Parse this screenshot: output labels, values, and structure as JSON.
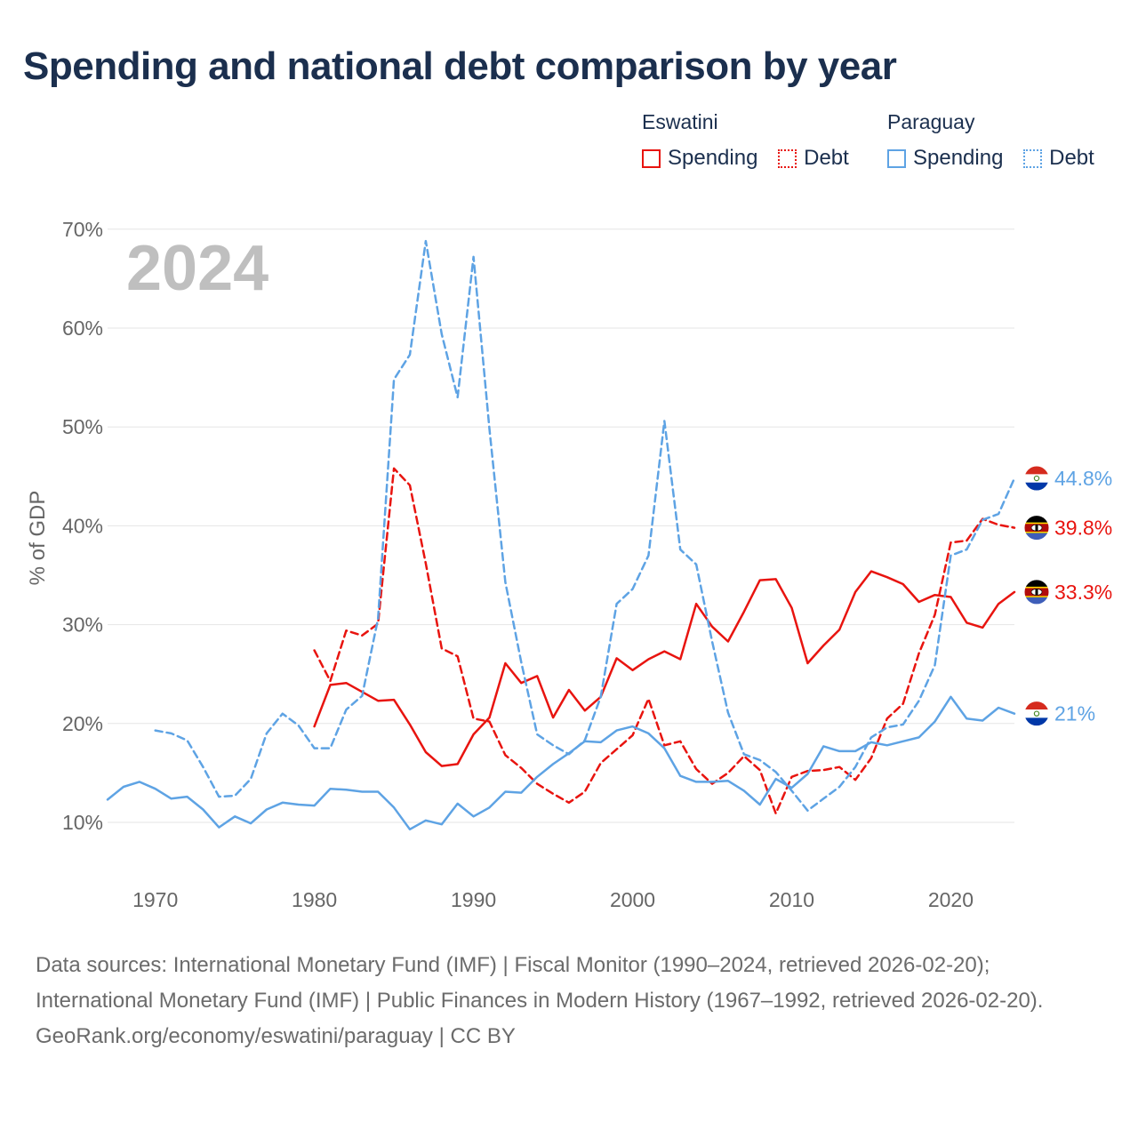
{
  "title": "Spending and national debt comparison by year",
  "year_badge": "2024",
  "legend": {
    "groups": [
      {
        "country": "Eswatini",
        "color": "#e8140f",
        "spending_label": "Spending",
        "debt_label": "Debt"
      },
      {
        "country": "Paraguay",
        "color": "#5ea3e4",
        "spending_label": "Spending",
        "debt_label": "Debt"
      }
    ]
  },
  "chart_data": {
    "type": "line",
    "title": "Spending and national debt comparison by year",
    "xlabel": "",
    "ylabel": "% of GDP",
    "xlim": [
      1967,
      2024
    ],
    "ylim": [
      5,
      72
    ],
    "x_ticks": [
      1970,
      1980,
      1990,
      2000,
      2010,
      2020
    ],
    "y_ticks": [
      10,
      20,
      30,
      40,
      50,
      60,
      70
    ],
    "y_tick_labels": [
      "10%",
      "20%",
      "30%",
      "40%",
      "50%",
      "60%",
      "70%"
    ],
    "grid": true,
    "series": [
      {
        "name": "Eswatini Spending",
        "country": "Eswatini",
        "measure": "Spending",
        "style": "solid",
        "color": "#e8140f",
        "x": [
          1980,
          1981,
          1982,
          1983,
          1984,
          1985,
          1986,
          1987,
          1988,
          1989,
          1990,
          1991,
          1992,
          1993,
          1994,
          1995,
          1996,
          1997,
          1998,
          1999,
          2000,
          2001,
          2002,
          2003,
          2004,
          2005,
          2006,
          2007,
          2008,
          2009,
          2010,
          2011,
          2012,
          2013,
          2014,
          2015,
          2016,
          2017,
          2018,
          2019,
          2020,
          2021,
          2022,
          2023,
          2024
        ],
        "values": [
          19.7,
          23.9,
          24.1,
          23.2,
          22.3,
          22.4,
          19.9,
          17.1,
          15.7,
          15.9,
          18.9,
          20.6,
          26.1,
          24.1,
          24.8,
          20.6,
          23.4,
          21.3,
          22.7,
          26.6,
          25.4,
          26.5,
          27.3,
          26.5,
          32.1,
          29.8,
          28.3,
          31.3,
          34.5,
          34.6,
          31.7,
          26.1,
          27.9,
          29.5,
          33.3,
          35.4,
          34.8,
          34.1,
          32.3,
          33.0,
          32.8,
          30.2,
          29.7,
          32.1,
          33.3
        ],
        "end_label": "33.3%"
      },
      {
        "name": "Eswatini Debt",
        "country": "Eswatini",
        "measure": "Debt",
        "style": "dashed",
        "color": "#e8140f",
        "x": [
          1980,
          1981,
          1982,
          1983,
          1984,
          1985,
          1986,
          1987,
          1988,
          1989,
          1990,
          1991,
          1992,
          1993,
          1994,
          1995,
          1996,
          1997,
          1998,
          1999,
          2000,
          2001,
          2002,
          2003,
          2004,
          2005,
          2006,
          2007,
          2008,
          2009,
          2010,
          2011,
          2012,
          2013,
          2014,
          2015,
          2016,
          2017,
          2018,
          2019,
          2020,
          2021,
          2022,
          2023,
          2024
        ],
        "values": [
          27.4,
          24.3,
          29.4,
          28.9,
          30.1,
          45.8,
          44.1,
          36.2,
          27.6,
          26.8,
          20.5,
          20.2,
          16.8,
          15.5,
          13.9,
          12.9,
          12.0,
          13.1,
          16.0,
          17.4,
          18.8,
          22.5,
          17.8,
          18.2,
          15.4,
          13.9,
          15.0,
          16.7,
          15.3,
          10.9,
          14.6,
          15.2,
          15.3,
          15.6,
          14.3,
          16.5,
          20.5,
          22.0,
          27.1,
          31.0,
          38.3,
          38.5,
          40.7,
          40.1,
          39.8
        ],
        "end_label": "39.8%"
      },
      {
        "name": "Paraguay Spending",
        "country": "Paraguay",
        "measure": "Spending",
        "style": "solid",
        "color": "#5ea3e4",
        "x": [
          1967,
          1968,
          1969,
          1970,
          1971,
          1972,
          1973,
          1974,
          1975,
          1976,
          1977,
          1978,
          1979,
          1980,
          1981,
          1982,
          1983,
          1984,
          1985,
          1986,
          1987,
          1988,
          1989,
          1990,
          1991,
          1992,
          1993,
          1994,
          1995,
          1996,
          1997,
          1998,
          1999,
          2000,
          2001,
          2002,
          2003,
          2004,
          2005,
          2006,
          2007,
          2008,
          2009,
          2010,
          2011,
          2012,
          2013,
          2014,
          2015,
          2016,
          2017,
          2018,
          2019,
          2020,
          2021,
          2022,
          2023,
          2024
        ],
        "values": [
          12.3,
          13.6,
          14.1,
          13.4,
          12.4,
          12.6,
          11.3,
          9.5,
          10.6,
          9.9,
          11.3,
          12.0,
          11.8,
          11.7,
          13.4,
          13.3,
          13.1,
          13.1,
          11.5,
          9.3,
          10.2,
          9.8,
          11.9,
          10.6,
          11.5,
          13.1,
          13.0,
          14.6,
          15.9,
          17.0,
          18.2,
          18.1,
          19.3,
          19.7,
          19.0,
          17.5,
          14.7,
          14.1,
          14.1,
          14.2,
          13.2,
          11.8,
          14.4,
          13.5,
          14.9,
          17.7,
          17.2,
          17.2,
          18.1,
          17.8,
          18.2,
          18.6,
          20.2,
          22.7,
          20.5,
          20.3,
          21.6,
          21.0
        ],
        "end_label": "21%"
      },
      {
        "name": "Paraguay Debt",
        "country": "Paraguay",
        "measure": "Debt",
        "style": "dashed",
        "color": "#5ea3e4",
        "x": [
          1970,
          1971,
          1972,
          1973,
          1974,
          1975,
          1976,
          1977,
          1978,
          1979,
          1980,
          1981,
          1982,
          1983,
          1984,
          1985,
          1986,
          1987,
          1988,
          1989,
          1990,
          1991,
          1992,
          1993,
          1994,
          1995,
          1996,
          1997,
          1998,
          1999,
          2000,
          2001,
          2002,
          2003,
          2004,
          2005,
          2006,
          2007,
          2008,
          2009,
          2010,
          2011,
          2012,
          2013,
          2014,
          2015,
          2016,
          2017,
          2018,
          2019,
          2020,
          2021,
          2022,
          2023,
          2024
        ],
        "values": [
          19.3,
          19.0,
          18.3,
          15.6,
          12.6,
          12.7,
          14.4,
          19.0,
          21.0,
          19.8,
          17.5,
          17.5,
          21.4,
          22.8,
          30.6,
          54.8,
          57.3,
          68.8,
          59.4,
          53.0,
          67.2,
          49.8,
          34.3,
          26.2,
          18.9,
          17.8,
          16.9,
          18.3,
          22.7,
          32.1,
          33.6,
          37.0,
          50.6,
          37.6,
          36.1,
          28.3,
          21.1,
          16.9,
          16.3,
          15.1,
          13.2,
          11.2,
          12.4,
          13.6,
          15.6,
          18.6,
          19.6,
          19.9,
          22.3,
          25.9,
          37.0,
          37.6,
          40.6,
          41.2,
          44.8
        ],
        "end_label": "44.8%"
      }
    ]
  },
  "footer": {
    "sources": "Data sources: International Monetary Fund (IMF) | Fiscal Monitor (1990–2024, retrieved 2026-02-20); International Monetary Fund (IMF) | Public Finances in Modern History (1967–1992, retrieved 2026-02-20).",
    "attribution": "GeoRank.org/economy/eswatini/paraguay | CC BY"
  }
}
